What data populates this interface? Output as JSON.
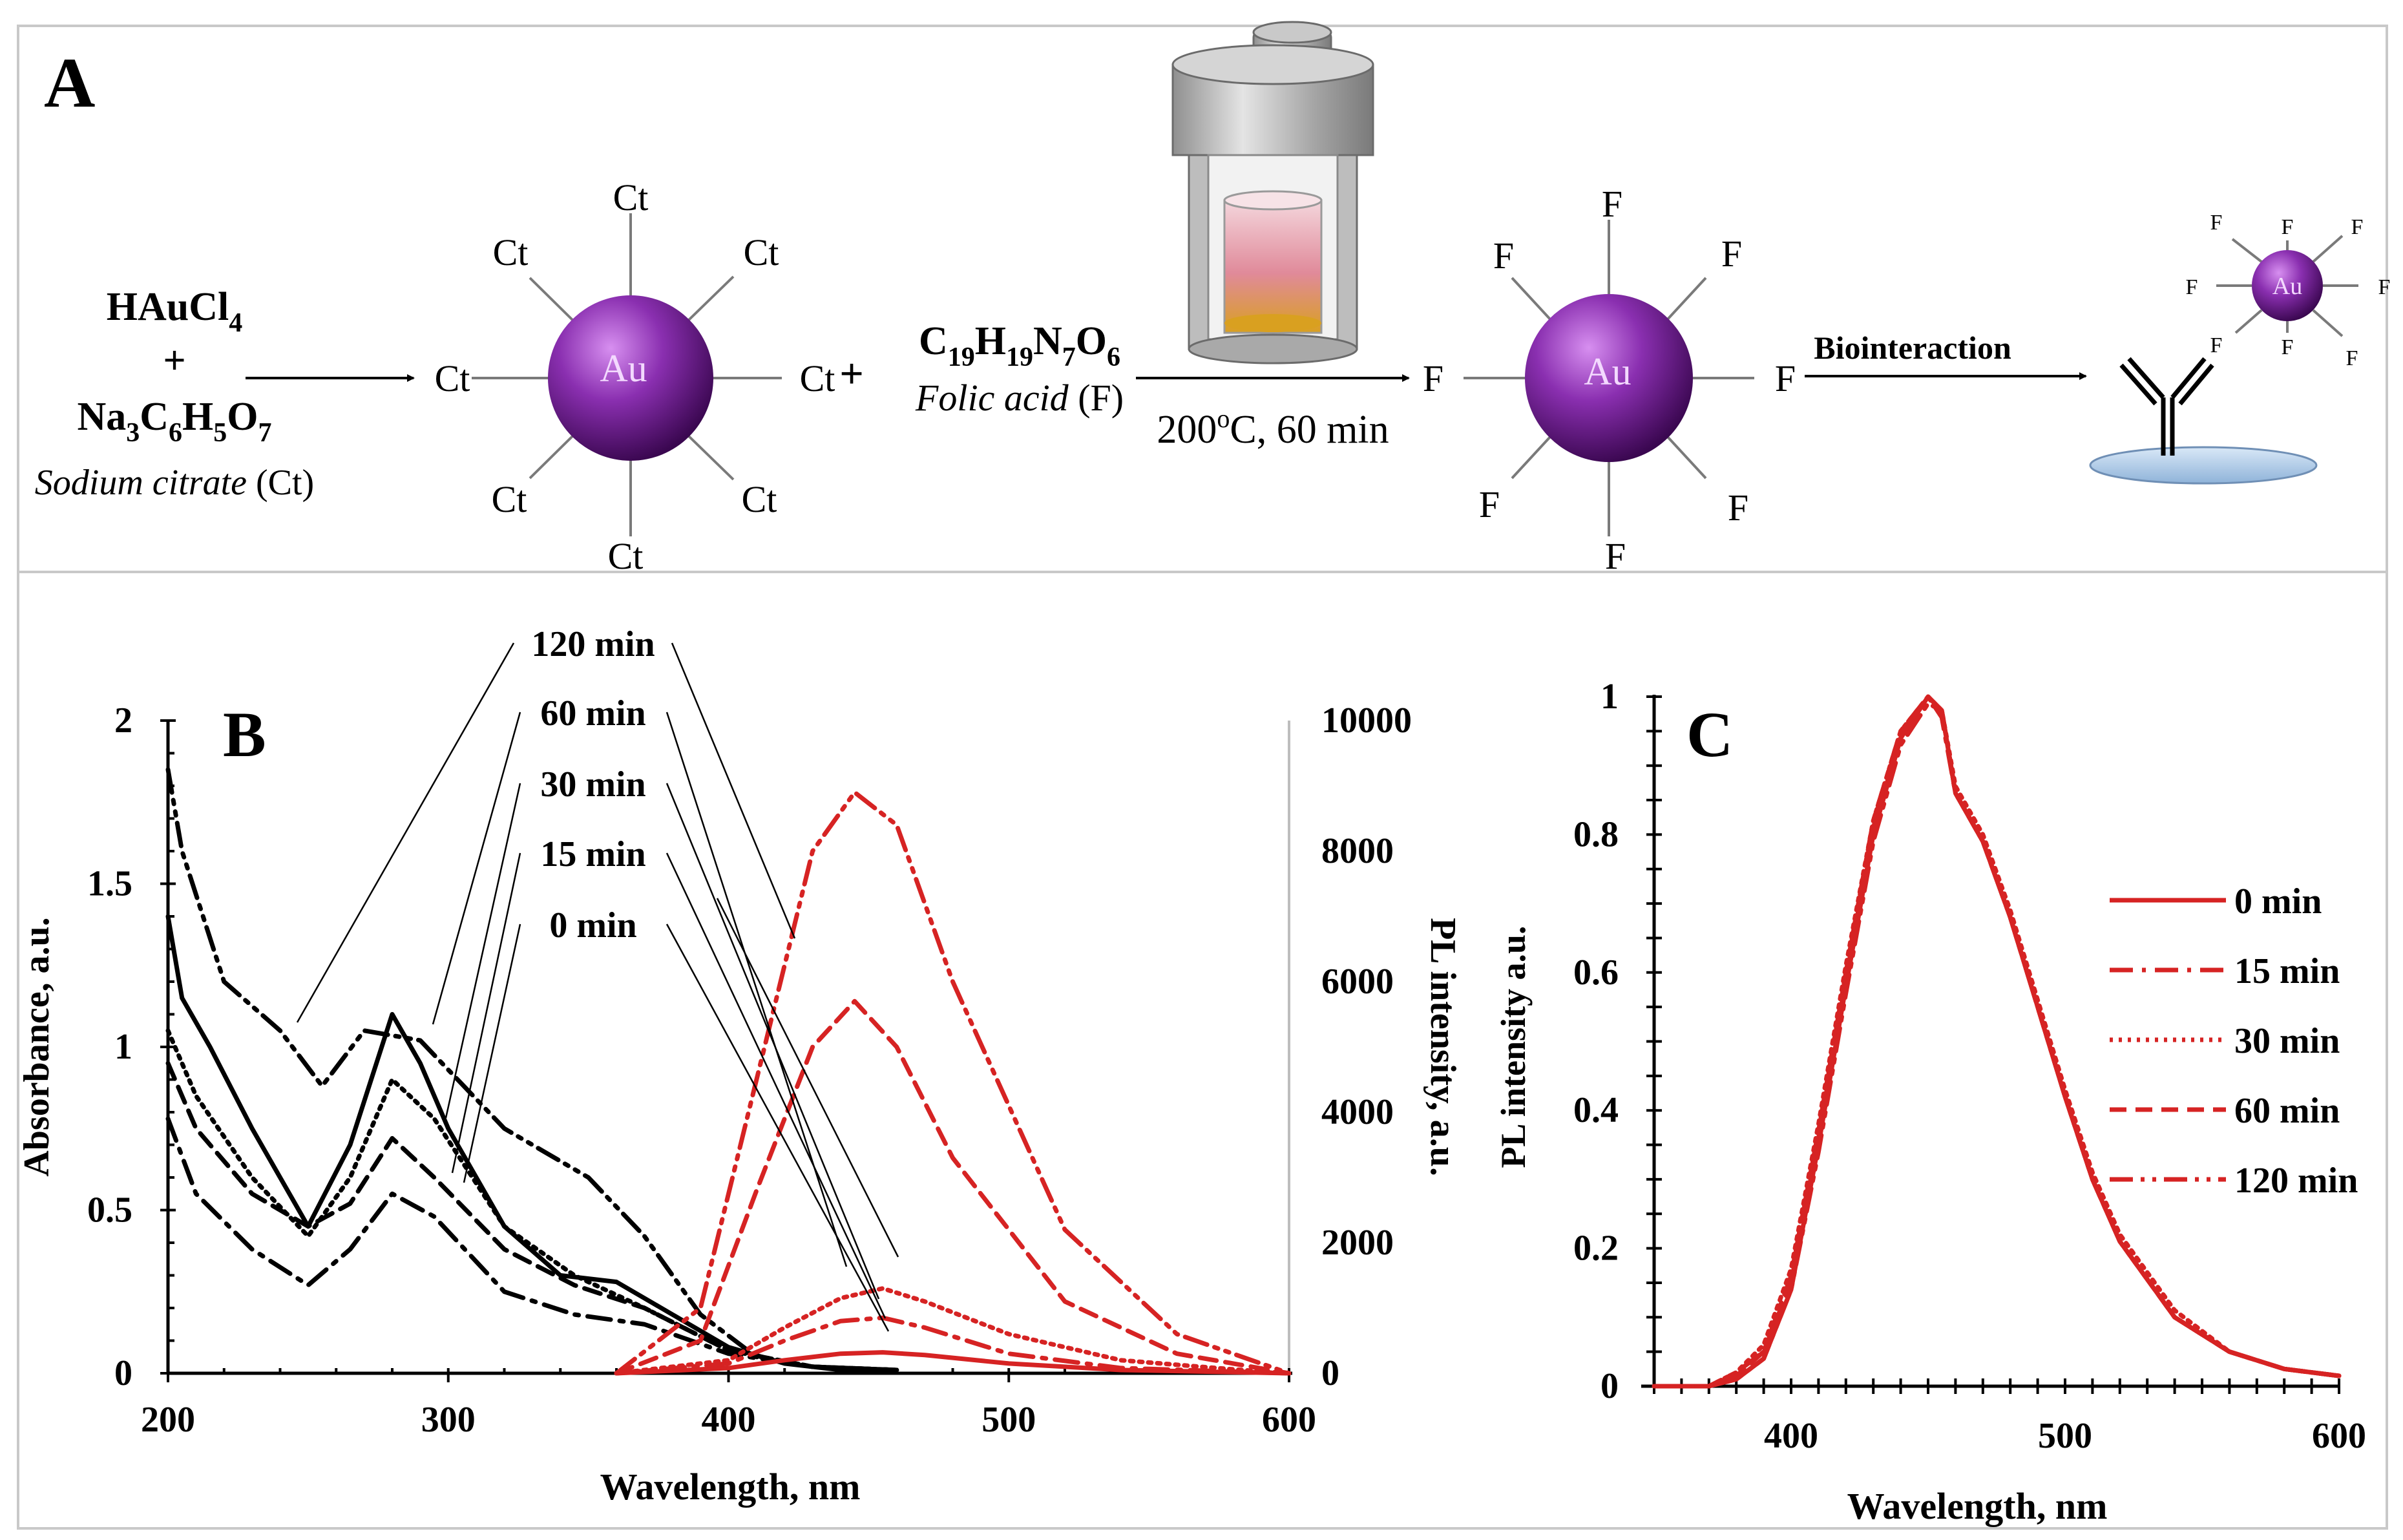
{
  "panel_a": {
    "label": "A",
    "reagent1": {
      "line1": "HAuCl",
      "line1_sub": "4",
      "plus": "+",
      "line2": "Na",
      "line2_parts": [
        "3",
        "C",
        "6",
        "H",
        "5",
        "O",
        "7"
      ],
      "name": "Sodium citrate",
      "abbr": "(Ct)"
    },
    "particle1": {
      "core": "Au",
      "ligand": "Ct"
    },
    "plus": "+",
    "reagent2": {
      "formula": "C",
      "formula_parts": [
        "19",
        "H",
        "19",
        "N",
        "7",
        "O",
        "6"
      ],
      "name": "Folic acid",
      "abbr": "(F)"
    },
    "conditions": {
      "temp": "200",
      "sup": "o",
      "rest": "C, 60 min"
    },
    "particle2": {
      "core": "Au",
      "ligand": "F"
    },
    "step3": "Biointeraction",
    "particle3": {
      "core": "Au",
      "ligand": "F"
    }
  },
  "chart_data": [
    {
      "panel": "B",
      "type": "line",
      "xlabel": "Wavelength, nm",
      "ylabel": "Absorbance, a.u.",
      "y2label": "PL intensity, a.u.",
      "xlim": [
        200,
        600
      ],
      "ylim": [
        0,
        2
      ],
      "y2lim": [
        0,
        10000
      ],
      "xticks": [
        "200",
        "300",
        "400",
        "500",
        "600"
      ],
      "yticks": [
        "0",
        "0.5",
        "1",
        "1.5",
        "2"
      ],
      "y2ticks": [
        "0",
        "2000",
        "4000",
        "6000",
        "8000",
        "10000"
      ],
      "annotations": [
        "120 min",
        "60 min",
        "30 min",
        "15 min",
        "0 min"
      ],
      "absorbance_series": [
        {
          "name": "0 min",
          "style": "solid",
          "x": [
            200,
            205,
            215,
            230,
            250,
            265,
            280,
            290,
            300,
            320,
            340,
            360,
            380,
            400,
            420,
            440,
            460
          ],
          "y": [
            1.4,
            1.15,
            1.0,
            0.75,
            0.45,
            0.7,
            1.1,
            0.95,
            0.75,
            0.45,
            0.3,
            0.28,
            0.18,
            0.08,
            0.03,
            0.01,
            0.01
          ]
        },
        {
          "name": "15 min",
          "style": "dotted",
          "x": [
            200,
            210,
            230,
            250,
            265,
            280,
            295,
            320,
            345,
            370,
            400,
            430,
            460
          ],
          "y": [
            1.05,
            0.85,
            0.6,
            0.42,
            0.6,
            0.9,
            0.78,
            0.45,
            0.3,
            0.2,
            0.07,
            0.02,
            0.01
          ]
        },
        {
          "name": "30 min",
          "style": "dashed",
          "x": [
            200,
            210,
            230,
            250,
            265,
            280,
            295,
            320,
            345,
            370,
            400,
            430,
            460
          ],
          "y": [
            0.95,
            0.75,
            0.55,
            0.45,
            0.52,
            0.72,
            0.6,
            0.38,
            0.27,
            0.2,
            0.07,
            0.02,
            0.01
          ]
        },
        {
          "name": "60 min",
          "style": "dashdot",
          "x": [
            200,
            210,
            230,
            250,
            265,
            280,
            295,
            320,
            345,
            370,
            400,
            430,
            460
          ],
          "y": [
            0.78,
            0.55,
            0.38,
            0.27,
            0.38,
            0.55,
            0.48,
            0.25,
            0.18,
            0.15,
            0.06,
            0.02,
            0.01
          ]
        },
        {
          "name": "120 min",
          "style": "dashdotdot",
          "x": [
            200,
            205,
            220,
            240,
            255,
            270,
            290,
            320,
            350,
            370,
            390,
            410,
            430,
            460
          ],
          "y": [
            1.85,
            1.6,
            1.2,
            1.05,
            0.88,
            1.05,
            1.02,
            0.75,
            0.6,
            0.42,
            0.18,
            0.05,
            0.02,
            0.01
          ]
        }
      ],
      "pl_series": [
        {
          "name": "0 min",
          "style": "solid",
          "x": [
            360,
            400,
            420,
            440,
            455,
            470,
            500,
            540,
            600
          ],
          "y": [
            0,
            80,
            200,
            300,
            320,
            280,
            150,
            50,
            0
          ]
        },
        {
          "name": "15 min",
          "style": "dashdot",
          "x": [
            360,
            400,
            420,
            440,
            455,
            470,
            500,
            540,
            600
          ],
          "y": [
            0,
            150,
            500,
            800,
            850,
            700,
            300,
            80,
            0
          ]
        },
        {
          "name": "30 min",
          "style": "dotted",
          "x": [
            360,
            400,
            420,
            440,
            455,
            470,
            500,
            540,
            580,
            600
          ],
          "y": [
            0,
            200,
            700,
            1150,
            1300,
            1100,
            600,
            200,
            60,
            0
          ]
        },
        {
          "name": "60 min",
          "style": "dashed",
          "x": [
            360,
            390,
            410,
            430,
            445,
            460,
            480,
            520,
            560,
            600
          ],
          "y": [
            0,
            500,
            2800,
            5000,
            5700,
            5000,
            3300,
            1100,
            300,
            0
          ]
        },
        {
          "name": "120 min",
          "style": "dashdotdot",
          "x": [
            360,
            390,
            410,
            430,
            445,
            460,
            480,
            520,
            560,
            600
          ],
          "y": [
            0,
            1000,
            4500,
            8000,
            8900,
            8400,
            6000,
            2200,
            600,
            0
          ]
        }
      ]
    },
    {
      "panel": "C",
      "type": "line",
      "xlabel": "Wavelength, nm",
      "ylabel": "PL intensity a.u.",
      "xlim": [
        350,
        600
      ],
      "ylim": [
        0,
        1
      ],
      "xticks": [
        "400",
        "500",
        "600"
      ],
      "yticks": [
        "0",
        "0.2",
        "0.4",
        "0.6",
        "0.8",
        "1"
      ],
      "legend_position": "right",
      "series": [
        {
          "name": "0 min",
          "style": "solid",
          "x": [
            350,
            370,
            380,
            390,
            400,
            410,
            420,
            430,
            440,
            450,
            455,
            460,
            470,
            480,
            490,
            500,
            510,
            520,
            540,
            560,
            580,
            600
          ],
          "y": [
            0,
            0,
            0.01,
            0.04,
            0.14,
            0.35,
            0.58,
            0.8,
            0.94,
            1.0,
            0.98,
            0.86,
            0.79,
            0.68,
            0.55,
            0.42,
            0.3,
            0.21,
            0.1,
            0.05,
            0.025,
            0.015
          ]
        },
        {
          "name": "15 min",
          "style": "dashdot",
          "x": [
            350,
            370,
            380,
            390,
            400,
            410,
            420,
            430,
            440,
            450,
            455,
            460,
            470,
            480,
            490,
            500,
            510,
            520,
            540,
            560,
            580,
            600
          ],
          "y": [
            0,
            0,
            0.02,
            0.05,
            0.16,
            0.37,
            0.6,
            0.82,
            0.95,
            1.0,
            0.97,
            0.86,
            0.79,
            0.68,
            0.55,
            0.42,
            0.3,
            0.21,
            0.1,
            0.05,
            0.025,
            0.015
          ]
        },
        {
          "name": "30 min",
          "style": "dotted",
          "x": [
            350,
            370,
            380,
            390,
            400,
            410,
            420,
            430,
            440,
            450,
            455,
            460,
            470,
            480,
            490,
            500,
            510,
            520,
            540,
            560,
            580,
            600
          ],
          "y": [
            0,
            0,
            0.02,
            0.06,
            0.17,
            0.38,
            0.61,
            0.82,
            0.95,
            1.0,
            0.98,
            0.87,
            0.8,
            0.69,
            0.56,
            0.43,
            0.31,
            0.22,
            0.11,
            0.05,
            0.025,
            0.015
          ]
        },
        {
          "name": "60 min",
          "style": "dashed",
          "x": [
            350,
            370,
            380,
            390,
            400,
            410,
            420,
            430,
            440,
            450,
            455,
            460,
            470,
            480,
            490,
            500,
            510,
            520,
            540,
            560,
            580,
            600
          ],
          "y": [
            0,
            0,
            0.015,
            0.05,
            0.15,
            0.36,
            0.59,
            0.81,
            0.94,
            1.0,
            0.98,
            0.86,
            0.79,
            0.68,
            0.55,
            0.42,
            0.3,
            0.21,
            0.1,
            0.05,
            0.025,
            0.015
          ]
        },
        {
          "name": "120 min",
          "style": "dashdotdot",
          "x": [
            350,
            370,
            380,
            390,
            400,
            410,
            420,
            430,
            440,
            450,
            455,
            460,
            470,
            480,
            490,
            500,
            510,
            520,
            540,
            560,
            580,
            600
          ],
          "y": [
            0,
            0,
            0.01,
            0.04,
            0.14,
            0.34,
            0.57,
            0.79,
            0.93,
            0.99,
            0.98,
            0.86,
            0.79,
            0.68,
            0.55,
            0.42,
            0.3,
            0.21,
            0.1,
            0.05,
            0.025,
            0.015
          ]
        }
      ]
    }
  ],
  "colors": {
    "red": "#d62323",
    "black": "#000000",
    "gold_dark": "#3d0a52",
    "gold_light": "#c77de0",
    "vessel": "#9a9a9a"
  }
}
